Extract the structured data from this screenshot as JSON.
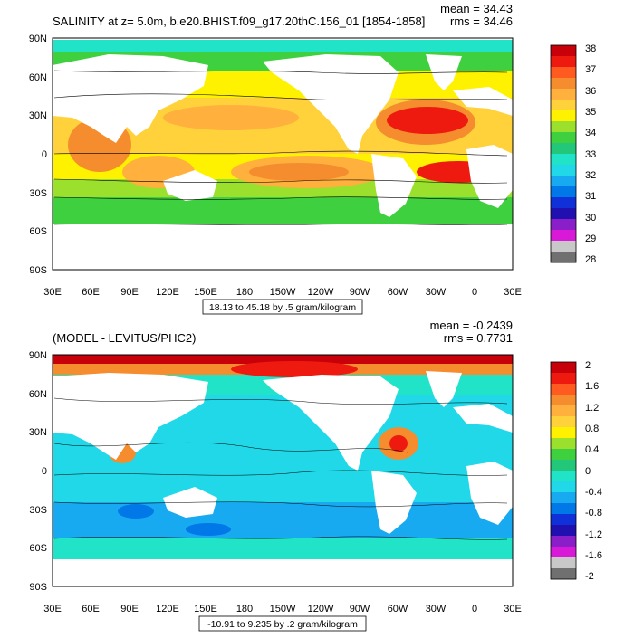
{
  "top": {
    "title": "SALINITY at z=   5.0m, b.e20.BHIST.f09_g17.20thC.156_01 [1854-1858]",
    "mean_text": "mean = 34.43",
    "rms_text": "rms = 34.46",
    "range_text": "18.13 to 45.18 by .5 gram/kilogram",
    "colorbar_labels": [
      "38",
      "37",
      "36",
      "35",
      "34",
      "33",
      "32",
      "31",
      "30",
      "29",
      "28"
    ],
    "colorbar_colors": [
      "#c8000a",
      "#ee1a10",
      "#ff5a1f",
      "#f58c2e",
      "#ffb03d",
      "#ffd23b",
      "#fff200",
      "#9ae02d",
      "#3fd040",
      "#22c77a",
      "#20e3c8",
      "#20d8e8",
      "#18aaf0",
      "#0078e8",
      "#1030d8",
      "#2010b0",
      "#8a1ec8",
      "#d81ad8",
      "#c8c8c8",
      "#707070"
    ]
  },
  "bottom": {
    "title": "(MODEL - LEVITUS/PHC2)",
    "mean_text": "mean = -0.2439",
    "rms_text": "rms = 0.7731",
    "range_text": "-10.91 to 9.235 by .2 gram/kilogram",
    "colorbar_labels": [
      "2",
      "1.6",
      "1.2",
      "0.8",
      "0.4",
      "0",
      "-0.4",
      "-0.8",
      "-1.2",
      "-1.6",
      "-2"
    ],
    "colorbar_colors": [
      "#c8000a",
      "#ee1a10",
      "#ff5a1f",
      "#f58c2e",
      "#ffb03d",
      "#ffd23b",
      "#fff200",
      "#9ae02d",
      "#3fd040",
      "#22c77a",
      "#20e3c8",
      "#20d8e8",
      "#18aaf0",
      "#0078e8",
      "#1030d8",
      "#2010b0",
      "#8a1ec8",
      "#d81ad8",
      "#c8c8c8",
      "#707070"
    ]
  },
  "axes": {
    "lat_labels": [
      "90N",
      "60N",
      "30N",
      "0",
      "30S",
      "60S",
      "90S"
    ],
    "lon_labels": [
      "30E",
      "60E",
      "90E",
      "120E",
      "150E",
      "180",
      "150W",
      "120W",
      "90W",
      "60W",
      "30W",
      "0",
      "30E"
    ]
  }
}
